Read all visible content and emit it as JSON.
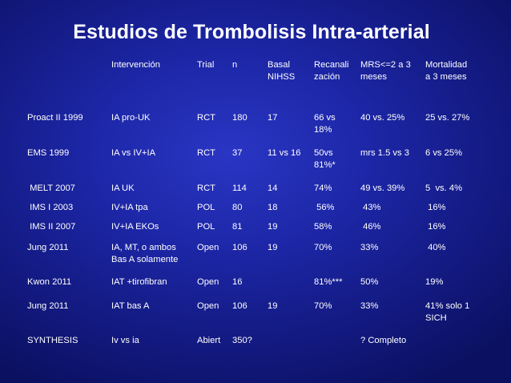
{
  "title": "Estudios de Trombolisis Intra-arterial",
  "headers": [
    "",
    "Intervención",
    "Trial",
    "n",
    "Basal\nNIHSS",
    "Recanali\nzación",
    "MRS<=2 a 3\nmeses",
    "Mortalidad\na 3 meses"
  ],
  "rows": [
    [
      "Proact II 1999",
      "IA pro-UK",
      "RCT",
      "180",
      "17",
      "66 vs\n18%",
      "40 vs. 25%",
      "25 vs. 27%"
    ],
    [
      "EMS 1999",
      "IA vs IV+IA",
      "RCT",
      "37",
      "11 vs 16",
      "50vs\n81%*",
      "mrs 1.5 vs 3",
      "6 vs 25%"
    ],
    [
      " MELT 2007",
      "IA UK",
      "RCT",
      "114",
      "14",
      "74%",
      "49 vs. 39%",
      "5  vs. 4%"
    ],
    [
      " IMS I 2003",
      "IV+IA tpa",
      "POL",
      "80",
      "18",
      " 56%",
      " 43%",
      " 16%"
    ],
    [
      " IMS II 2007",
      "IV+IA EKOs",
      "POL",
      "81",
      "19",
      "58%",
      " 46%",
      " 16%"
    ],
    [
      "Jung 2011",
      "IA, MT, o ambos\nBas A solamente",
      "Open",
      "106",
      "19",
      "70%",
      "33%",
      " 40%"
    ],
    [
      "Kwon 2011",
      "IAT +tirofibran",
      "Open",
      "16",
      "",
      "81%***",
      "50%",
      "19%"
    ],
    [
      "Jung 2011",
      "IAT bas A",
      "Open",
      "106",
      "19",
      "70%",
      "33%",
      "41% solo 1\nSICH"
    ],
    [
      "SYNTHESIS",
      "Iv vs ia",
      "Abiert",
      "350?",
      "",
      "",
      "? Completo",
      ""
    ]
  ]
}
